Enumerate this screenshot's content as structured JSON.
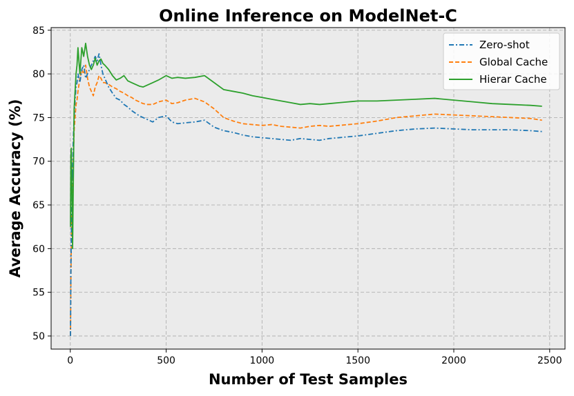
{
  "chart_data": {
    "type": "line",
    "title": "Online Inference on ModelNet-C",
    "xlabel": "Number of Test Samples",
    "ylabel": "Average Accuracy (%)",
    "xlim": [
      -100,
      2580
    ],
    "ylim": [
      48.5,
      85.3
    ],
    "xticks": [
      0,
      500,
      1000,
      1500,
      2000,
      2500
    ],
    "yticks": [
      50,
      55,
      60,
      65,
      70,
      75,
      80,
      85
    ],
    "grid": true,
    "legend_position": "top-right",
    "background": "#ebebeb",
    "series": [
      {
        "name": "Zero-shot",
        "color": "#1f77b4",
        "dash": "dashdot",
        "x": [
          1,
          3,
          5,
          8,
          10,
          12,
          15,
          18,
          20,
          25,
          30,
          35,
          40,
          50,
          60,
          70,
          80,
          90,
          100,
          110,
          120,
          130,
          140,
          150,
          160,
          170,
          180,
          200,
          220,
          240,
          260,
          280,
          300,
          320,
          340,
          360,
          380,
          400,
          430,
          460,
          500,
          530,
          560,
          600,
          650,
          700,
          750,
          800,
          850,
          900,
          950,
          1000,
          1050,
          1100,
          1150,
          1200,
          1250,
          1300,
          1350,
          1400,
          1450,
          1500,
          1600,
          1700,
          1800,
          1900,
          2000,
          2100,
          2200,
          2300,
          2400,
          2460
        ],
        "values": [
          50.0,
          57.0,
          61.0,
          65.0,
          69.0,
          68.0,
          72.0,
          74.0,
          75.0,
          77.0,
          78.5,
          79.0,
          80.0,
          79.0,
          80.5,
          81.0,
          79.5,
          80.0,
          80.5,
          81.0,
          81.5,
          82.0,
          81.5,
          82.3,
          81.0,
          80.0,
          79.5,
          78.5,
          77.8,
          77.2,
          77.0,
          76.5,
          76.2,
          75.8,
          75.5,
          75.2,
          75.0,
          74.8,
          74.5,
          75.0,
          75.2,
          74.5,
          74.3,
          74.4,
          74.5,
          74.7,
          73.9,
          73.5,
          73.3,
          73.0,
          72.8,
          72.7,
          72.6,
          72.5,
          72.4,
          72.6,
          72.5,
          72.4,
          72.6,
          72.7,
          72.8,
          72.9,
          73.2,
          73.5,
          73.7,
          73.8,
          73.7,
          73.6,
          73.6,
          73.6,
          73.5,
          73.4
        ]
      },
      {
        "name": "Global Cache",
        "color": "#ff7f0e",
        "dash": "dashed",
        "x": [
          1,
          3,
          5,
          8,
          10,
          12,
          15,
          18,
          20,
          25,
          30,
          35,
          40,
          50,
          60,
          70,
          80,
          90,
          100,
          110,
          120,
          130,
          140,
          150,
          160,
          170,
          180,
          200,
          220,
          240,
          260,
          280,
          300,
          320,
          340,
          360,
          380,
          400,
          430,
          460,
          500,
          530,
          560,
          600,
          650,
          700,
          750,
          800,
          850,
          900,
          950,
          1000,
          1050,
          1100,
          1150,
          1200,
          1250,
          1300,
          1350,
          1400,
          1450,
          1500,
          1600,
          1700,
          1800,
          1900,
          2000,
          2100,
          2200,
          2300,
          2400,
          2460
        ],
        "values": [
          50.0,
          56.0,
          60.0,
          64.0,
          66.0,
          67.0,
          70.0,
          72.0,
          73.5,
          75.0,
          76.5,
          77.0,
          78.0,
          79.5,
          80.5,
          80.0,
          81.0,
          79.5,
          78.5,
          78.0,
          77.5,
          78.5,
          79.0,
          79.8,
          79.5,
          79.0,
          79.0,
          78.8,
          78.5,
          78.3,
          78.0,
          77.8,
          77.5,
          77.3,
          77.0,
          76.8,
          76.6,
          76.5,
          76.5,
          76.8,
          77.0,
          76.6,
          76.7,
          77.0,
          77.2,
          76.8,
          76.0,
          75.0,
          74.6,
          74.3,
          74.2,
          74.1,
          74.2,
          74.0,
          73.9,
          73.8,
          74.0,
          74.1,
          74.0,
          74.1,
          74.2,
          74.3,
          74.6,
          75.0,
          75.2,
          75.4,
          75.3,
          75.2,
          75.1,
          75.0,
          74.9,
          74.7
        ]
      },
      {
        "name": "Hierar Cache",
        "color": "#2ca02c",
        "dash": "solid",
        "x": [
          1,
          3,
          5,
          8,
          10,
          12,
          15,
          18,
          20,
          25,
          30,
          35,
          40,
          50,
          60,
          70,
          80,
          90,
          100,
          110,
          120,
          130,
          140,
          150,
          160,
          170,
          180,
          200,
          220,
          240,
          260,
          280,
          300,
          320,
          340,
          360,
          380,
          400,
          430,
          460,
          500,
          530,
          560,
          600,
          650,
          700,
          750,
          800,
          850,
          900,
          950,
          1000,
          1050,
          1100,
          1150,
          1200,
          1250,
          1300,
          1350,
          1400,
          1450,
          1500,
          1600,
          1700,
          1800,
          1900,
          2000,
          2100,
          2200,
          2300,
          2400,
          2460
        ],
        "values": [
          62.5,
          70.5,
          71.5,
          67.0,
          64.0,
          60.0,
          66.0,
          72.0,
          76.0,
          78.0,
          80.0,
          81.0,
          83.0,
          80.0,
          83.0,
          82.0,
          83.5,
          82.0,
          81.0,
          80.5,
          81.0,
          81.8,
          81.0,
          81.5,
          81.7,
          81.2,
          81.0,
          80.5,
          79.8,
          79.3,
          79.5,
          79.8,
          79.2,
          79.0,
          78.8,
          78.6,
          78.5,
          78.7,
          79.0,
          79.3,
          79.8,
          79.5,
          79.6,
          79.5,
          79.6,
          79.8,
          79.0,
          78.2,
          78.0,
          77.8,
          77.5,
          77.3,
          77.1,
          76.9,
          76.7,
          76.5,
          76.6,
          76.5,
          76.6,
          76.7,
          76.8,
          76.9,
          76.9,
          77.0,
          77.1,
          77.2,
          77.0,
          76.8,
          76.6,
          76.5,
          76.4,
          76.3
        ]
      }
    ]
  }
}
